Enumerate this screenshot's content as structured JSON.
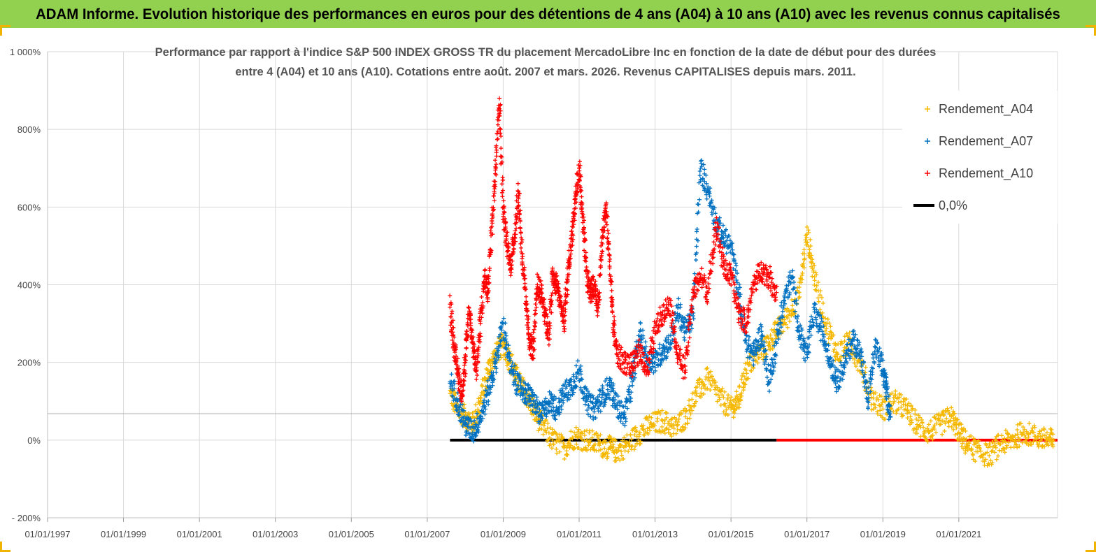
{
  "banner_title": "ADAM Informe. Evolution historique des performances en euros pour des détentions de 4 ans (A04) à 10 ans (A10) avec les revenus connus capitalisés",
  "chart_data": {
    "type": "scatter",
    "title_lines": [
      "Performance par rapport à l'indice S&P 500 INDEX GROSS TR  du placement MercadoLibre Inc en fonction de la date de début pour des durées",
      "entre 4 (A04) et 10 ans (A10). Cotations entre août. 2007 et mars. 2026. Revenus CAPITALISES depuis mars. 2011."
    ],
    "y_ticks": [
      -200,
      0,
      200,
      400,
      600,
      800,
      1000
    ],
    "y_tick_labels": [
      "- 200%",
      "0%",
      "200%",
      "400%",
      "600%",
      "800%",
      "1 000%"
    ],
    "ylim": [
      -200,
      1000
    ],
    "x_ticks": [
      1997,
      1999,
      2001,
      2003,
      2005,
      2007,
      2009,
      2011,
      2013,
      2015,
      2017,
      2019,
      2021
    ],
    "x_tick_labels": [
      "01/01/1997",
      "01/01/1999",
      "01/01/2001",
      "01/01/2003",
      "01/01/2005",
      "01/01/2007",
      "01/01/2009",
      "01/01/2011",
      "01/01/2013",
      "01/01/2015",
      "01/01/2017",
      "01/01/2019",
      "01/01/2021"
    ],
    "xlim": [
      1997,
      2023.6
    ],
    "grid": true,
    "legend_position": "top-right",
    "legend": [
      {
        "label": "Rendement_A04",
        "color": "#f5b800",
        "marker": "+"
      },
      {
        "label": "Rendement_A07",
        "color": "#0070c0",
        "marker": "+"
      },
      {
        "label": "Rendement_A10",
        "color": "#ff0000",
        "marker": "+"
      },
      {
        "label": "0,0%",
        "color": "#000000",
        "marker": "line"
      }
    ],
    "series": [
      {
        "name": "Rendement_A04",
        "color": "#f5b800",
        "x": [
          2007.6,
          2007.8,
          2008.0,
          2008.2,
          2008.4,
          2008.6,
          2008.8,
          2009.0,
          2009.2,
          2009.4,
          2009.6,
          2009.8,
          2010.0,
          2010.3,
          2010.6,
          2010.9,
          2011.2,
          2011.5,
          2011.8,
          2012.0,
          2012.3,
          2012.6,
          2012.9,
          2013.2,
          2013.5,
          2013.8,
          2014.1,
          2014.4,
          2014.7,
          2015.0,
          2015.2,
          2015.4,
          2015.7,
          2016.0,
          2016.2,
          2016.5,
          2016.8,
          2017.0,
          2017.2,
          2017.5,
          2017.8,
          2018.1,
          2018.4,
          2018.7,
          2019.0,
          2019.3,
          2019.6,
          2019.9,
          2020.2,
          2020.5,
          2020.8,
          2021.0,
          2021.2,
          2021.5,
          2021.8,
          2022.1,
          2022.4,
          2022.7,
          2023.0,
          2023.3,
          2023.5
        ],
        "y": [
          120,
          80,
          60,
          40,
          100,
          180,
          220,
          250,
          200,
          150,
          120,
          80,
          40,
          0,
          -20,
          10,
          0,
          -10,
          -20,
          -30,
          -10,
          20,
          40,
          50,
          30,
          60,
          120,
          160,
          110,
          80,
          100,
          180,
          220,
          250,
          280,
          320,
          380,
          530,
          420,
          300,
          220,
          250,
          200,
          110,
          80,
          100,
          80,
          40,
          20,
          40,
          60,
          20,
          -10,
          -30,
          -40,
          -10,
          0,
          20,
          10,
          0,
          0
        ]
      },
      {
        "name": "Rendement_A07",
        "color": "#0070c0",
        "x": [
          2007.6,
          2007.8,
          2008.0,
          2008.2,
          2008.4,
          2008.6,
          2008.8,
          2009.0,
          2009.2,
          2009.4,
          2009.6,
          2009.8,
          2010.0,
          2010.2,
          2010.4,
          2010.6,
          2010.8,
          2011.0,
          2011.2,
          2011.4,
          2011.6,
          2011.8,
          2012.0,
          2012.2,
          2012.4,
          2012.6,
          2012.8,
          2013.0,
          2013.2,
          2013.4,
          2013.6,
          2013.8,
          2014.0,
          2014.2,
          2014.4,
          2014.6,
          2014.8,
          2015.0,
          2015.2,
          2015.4,
          2015.6,
          2015.8,
          2016.0,
          2016.2,
          2016.4,
          2016.6,
          2016.8,
          2017.0,
          2017.2,
          2017.4,
          2017.6,
          2017.8,
          2018.0,
          2018.2,
          2018.4,
          2018.6,
          2018.8,
          2019.0,
          2019.1,
          2019.2
        ],
        "y": [
          150,
          100,
          40,
          20,
          60,
          120,
          200,
          300,
          180,
          140,
          120,
          100,
          60,
          100,
          80,
          120,
          140,
          180,
          100,
          80,
          110,
          140,
          90,
          60,
          150,
          280,
          210,
          200,
          230,
          250,
          340,
          280,
          320,
          700,
          640,
          560,
          520,
          500,
          380,
          250,
          220,
          280,
          150,
          250,
          360,
          420,
          280,
          220,
          330,
          280,
          210,
          150,
          200,
          260,
          230,
          100,
          240,
          180,
          130,
          60
        ]
      },
      {
        "name": "Rendement_A10",
        "color": "#ff0000",
        "x": [
          2007.6,
          2007.7,
          2007.8,
          2007.9,
          2008.0,
          2008.1,
          2008.2,
          2008.3,
          2008.4,
          2008.5,
          2008.6,
          2008.7,
          2008.8,
          2008.9,
          2009.0,
          2009.1,
          2009.2,
          2009.3,
          2009.4,
          2009.5,
          2009.6,
          2009.7,
          2009.8,
          2009.9,
          2010.0,
          2010.1,
          2010.2,
          2010.3,
          2010.4,
          2010.5,
          2010.6,
          2010.7,
          2010.8,
          2010.9,
          2011.0,
          2011.1,
          2011.2,
          2011.3,
          2011.4,
          2011.5,
          2011.6,
          2011.7,
          2011.8,
          2011.9,
          2012.0,
          2012.2,
          2012.4,
          2012.6,
          2012.8,
          2013.0,
          2013.2,
          2013.4,
          2013.6,
          2013.8,
          2014.0,
          2014.2,
          2014.4,
          2014.6,
          2014.8,
          2015.0,
          2015.2,
          2015.4,
          2015.6,
          2015.8,
          2016.0,
          2016.2
        ],
        "y": [
          350,
          250,
          180,
          120,
          200,
          340,
          250,
          180,
          300,
          420,
          380,
          550,
          700,
          880,
          600,
          500,
          450,
          520,
          640,
          480,
          350,
          250,
          230,
          400,
          380,
          330,
          260,
          420,
          400,
          360,
          300,
          420,
          520,
          620,
          700,
          560,
          420,
          380,
          400,
          340,
          520,
          600,
          460,
          300,
          220,
          200,
          190,
          230,
          180,
          280,
          330,
          350,
          220,
          180,
          380,
          420,
          380,
          560,
          450,
          420,
          330,
          300,
          400,
          440,
          420,
          380
        ]
      }
    ],
    "zero_line": {
      "label": "0,0%",
      "value": 0,
      "segments": [
        {
          "x_start": 2007.6,
          "x_end": 2016.2,
          "color": "#000000"
        },
        {
          "x_start": 2016.2,
          "x_end": 2023.6,
          "color": "#ff0000"
        }
      ]
    }
  }
}
